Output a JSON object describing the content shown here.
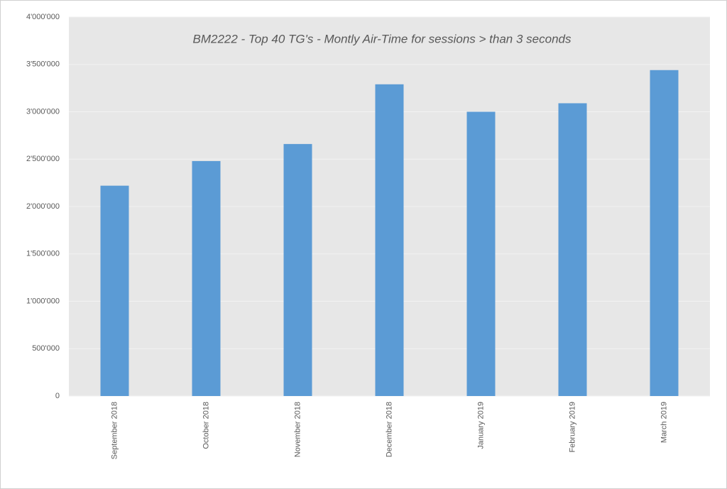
{
  "chart_data": {
    "type": "bar",
    "title": "BM2222 - Top 40 TG's - Montly Air-Time for sessions > than 3 seconds",
    "categories": [
      "September 2018",
      "October 2018",
      "November 2018",
      "December 2018",
      "January 2019",
      "February 2019",
      "March 2019"
    ],
    "values": [
      2220000,
      2480000,
      2660000,
      3290000,
      3000000,
      3090000,
      3440000
    ],
    "color": "#5b9bd5",
    "ylim": [
      0,
      4000000
    ],
    "yticks": [
      0,
      {
        "value": 500000,
        "label": "500'000"
      },
      {
        "value": 1000000,
        "label": "1'000'000"
      },
      {
        "value": 1500000,
        "label": "1'500'000"
      },
      {
        "value": 2000000,
        "label": "2'000'000"
      },
      {
        "value": 2500000,
        "label": "2'500'000"
      },
      {
        "value": 3000000,
        "label": "3'000'000"
      },
      {
        "value": 3500000,
        "label": "3'500'000"
      },
      {
        "value": 4000000,
        "label": "4'000'000"
      }
    ],
    "grid": true
  }
}
